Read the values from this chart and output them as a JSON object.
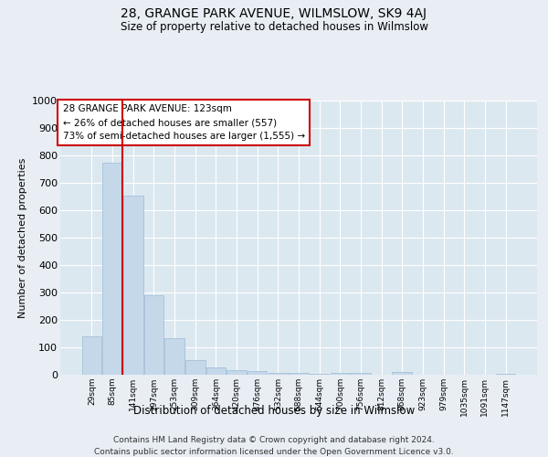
{
  "title": "28, GRANGE PARK AVENUE, WILMSLOW, SK9 4AJ",
  "subtitle": "Size of property relative to detached houses in Wilmslow",
  "xlabel": "Distribution of detached houses by size in Wilmslow",
  "ylabel": "Number of detached properties",
  "bar_values": [
    140,
    775,
    655,
    290,
    135,
    55,
    28,
    18,
    14,
    7,
    8,
    5,
    8,
    6,
    0,
    10,
    0,
    0,
    0,
    0,
    5
  ],
  "bar_labels": [
    "29sqm",
    "85sqm",
    "141sqm",
    "197sqm",
    "253sqm",
    "309sqm",
    "364sqm",
    "420sqm",
    "476sqm",
    "532sqm",
    "588sqm",
    "644sqm",
    "700sqm",
    "756sqm",
    "812sqm",
    "868sqm",
    "923sqm",
    "979sqm",
    "1035sqm",
    "1091sqm",
    "1147sqm"
  ],
  "bar_color": "#c5d8ea",
  "bar_edge_color": "#9bbbd4",
  "vline_bar_index": 1,
  "vline_color": "#cc0000",
  "annotation_box_text": "28 GRANGE PARK AVENUE: 123sqm\n← 26% of detached houses are smaller (557)\n73% of semi-detached houses are larger (1,555) →",
  "annotation_box_color": "#cc0000",
  "ylim": [
    0,
    1000
  ],
  "yticks": [
    0,
    100,
    200,
    300,
    400,
    500,
    600,
    700,
    800,
    900,
    1000
  ],
  "footer_line1": "Contains HM Land Registry data © Crown copyright and database right 2024.",
  "footer_line2": "Contains public sector information licensed under the Open Government Licence v3.0.",
  "bg_color": "#e8eef4",
  "plot_bg_color": "#dce8f0",
  "grid_color": "#ffffff"
}
